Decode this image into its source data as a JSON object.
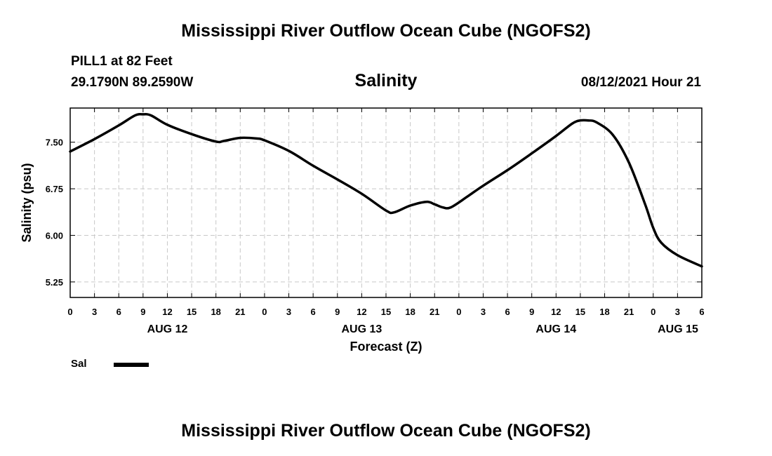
{
  "header": {
    "title": "Mississippi River Outflow Ocean Cube (NGOFS2)",
    "station": "PILL1 at 82 Feet",
    "coords": "29.1790N  89.2590W",
    "subtitle": "Salinity",
    "datetime": "08/12/2021 Hour 21"
  },
  "footer": {
    "title": "Mississippi River Outflow Ocean Cube (NGOFS2)"
  },
  "legend": {
    "label": "Sal",
    "color": "#000000"
  },
  "chart_data": {
    "type": "line",
    "title": "Salinity",
    "xlabel": "Forecast (Z)",
    "ylabel": "Salinity (psu)",
    "ylim": [
      5.0,
      8.05
    ],
    "xlim": [
      0,
      78
    ],
    "x_unit": "hours from Aug 12 00Z",
    "grid": true,
    "yticks": [
      {
        "value": 5.25,
        "label": "5.25"
      },
      {
        "value": 6.0,
        "label": "6.00"
      },
      {
        "value": 6.75,
        "label": "6.75"
      },
      {
        "value": 7.5,
        "label": "7.50"
      }
    ],
    "xticks": [
      "0",
      "3",
      "6",
      "9",
      "12",
      "15",
      "18",
      "21",
      "0",
      "3",
      "6",
      "9",
      "12",
      "15",
      "18",
      "21",
      "0",
      "3",
      "6",
      "9",
      "12",
      "15",
      "18",
      "21",
      "0",
      "3",
      "6"
    ],
    "date_labels": [
      {
        "label": "AUG 12",
        "hour": 12
      },
      {
        "label": "AUG 13",
        "hour": 36
      },
      {
        "label": "AUG 14",
        "hour": 60
      },
      {
        "label": "AUG 15",
        "hour": 78
      }
    ],
    "series": [
      {
        "name": "Sal",
        "color": "#000000",
        "x": [
          0,
          3,
          6,
          8,
          9,
          10,
          12,
          15,
          18,
          19,
          21,
          23,
          24,
          27,
          30,
          33,
          36,
          39,
          40,
          42,
          44,
          45,
          46,
          47,
          49,
          51,
          54,
          57,
          60,
          62,
          63,
          64,
          65,
          67,
          69,
          71,
          72,
          73,
          75,
          78
        ],
        "y": [
          7.35,
          7.55,
          7.77,
          7.93,
          7.95,
          7.93,
          7.78,
          7.63,
          7.51,
          7.52,
          7.57,
          7.56,
          7.53,
          7.36,
          7.12,
          6.9,
          6.67,
          6.4,
          6.37,
          6.48,
          6.54,
          6.5,
          6.45,
          6.45,
          6.62,
          6.8,
          7.05,
          7.32,
          7.6,
          7.8,
          7.85,
          7.85,
          7.82,
          7.62,
          7.17,
          6.5,
          6.12,
          5.88,
          5.68,
          5.5
        ]
      }
    ]
  }
}
